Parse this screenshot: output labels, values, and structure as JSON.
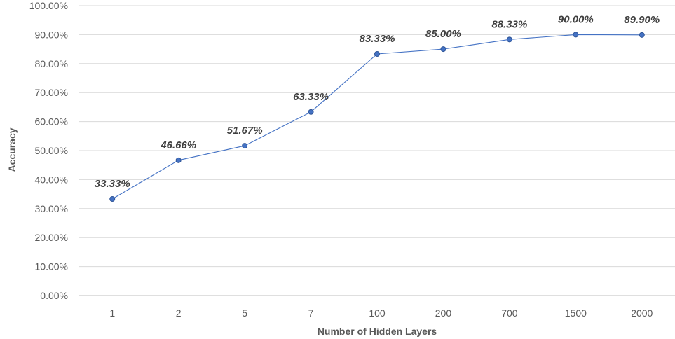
{
  "chart_data": {
    "type": "line",
    "title": "",
    "xlabel": "Number of Hidden Layers",
    "ylabel": "Accuracy",
    "categories": [
      "1",
      "2",
      "5",
      "7",
      "100",
      "200",
      "700",
      "1500",
      "2000"
    ],
    "series": [
      {
        "values": [
          33.33,
          46.66,
          51.67,
          63.33,
          83.33,
          85.0,
          88.33,
          90.0,
          89.9
        ],
        "labels": [
          "33.33%",
          "46.66%",
          "51.67%",
          "63.33%",
          "83.33%",
          "85.00%",
          "88.33%",
          "90.00%",
          "89.90%"
        ]
      }
    ],
    "ylim": [
      0,
      100
    ],
    "yticks": [
      "0.00%",
      "10.00%",
      "20.00%",
      "30.00%",
      "40.00%",
      "50.00%",
      "60.00%",
      "70.00%",
      "80.00%",
      "90.00%",
      "100.00%"
    ],
    "grid": true,
    "legend": "none",
    "colors": {
      "line": "#4472c4",
      "marker_fill": "#4472c4",
      "marker_stroke": "#2f5597"
    }
  }
}
